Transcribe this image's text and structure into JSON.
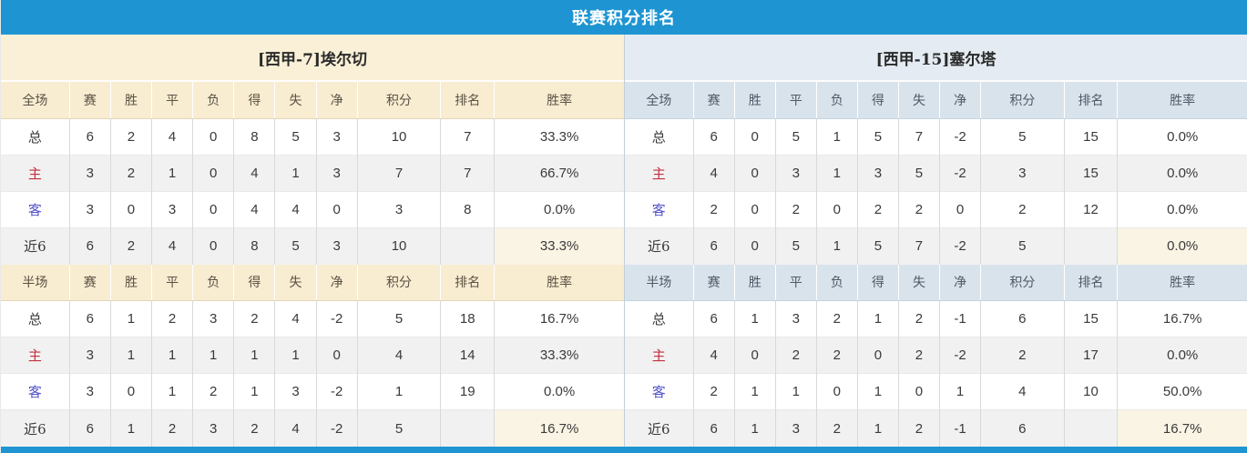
{
  "title": "联赛积分排名",
  "colors": {
    "accent_blue": "#1e95d2",
    "points_red": "#e8442c",
    "rank_blue": "#4e86b8",
    "home_label_red": "#c4303e",
    "away_label_blue": "#5353c8",
    "left_theme_cream": "#f8ecd1",
    "right_theme_blue": "#d9e3ec"
  },
  "stat_columns": [
    "赛",
    "胜",
    "平",
    "负",
    "得",
    "失",
    "净",
    "积分",
    "排名",
    "胜率"
  ],
  "teams": [
    {
      "name": "[西甲-7]埃尔切",
      "theme": "cream",
      "sections": [
        {
          "scope_label": "全场",
          "rows": [
            {
              "label": "总",
              "type": "total",
              "stats": [
                "6",
                "2",
                "4",
                "0",
                "8",
                "5",
                "3"
              ],
              "points": "10",
              "rank": "7",
              "win_rate": "33.3%"
            },
            {
              "label": "主",
              "type": "home",
              "stats": [
                "3",
                "2",
                "1",
                "0",
                "4",
                "1",
                "3"
              ],
              "points": "7",
              "rank": "7",
              "win_rate": "66.7%"
            },
            {
              "label": "客",
              "type": "away",
              "stats": [
                "3",
                "0",
                "3",
                "0",
                "4",
                "4",
                "0"
              ],
              "points": "3",
              "rank": "8",
              "win_rate": "0.0%"
            },
            {
              "label": "近6",
              "type": "recent",
              "stats": [
                "6",
                "2",
                "4",
                "0",
                "8",
                "5",
                "3"
              ],
              "points": "10",
              "rank": "",
              "win_rate": "33.3%"
            }
          ]
        },
        {
          "scope_label": "半场",
          "rows": [
            {
              "label": "总",
              "type": "total",
              "stats": [
                "6",
                "1",
                "2",
                "3",
                "2",
                "4",
                "-2"
              ],
              "points": "5",
              "rank": "18",
              "win_rate": "16.7%"
            },
            {
              "label": "主",
              "type": "home",
              "stats": [
                "3",
                "1",
                "1",
                "1",
                "1",
                "1",
                "0"
              ],
              "points": "4",
              "rank": "14",
              "win_rate": "33.3%"
            },
            {
              "label": "客",
              "type": "away",
              "stats": [
                "3",
                "0",
                "1",
                "2",
                "1",
                "3",
                "-2"
              ],
              "points": "1",
              "rank": "19",
              "win_rate": "0.0%"
            },
            {
              "label": "近6",
              "type": "recent",
              "stats": [
                "6",
                "1",
                "2",
                "3",
                "2",
                "4",
                "-2"
              ],
              "points": "5",
              "rank": "",
              "win_rate": "16.7%"
            }
          ]
        }
      ]
    },
    {
      "name": "[西甲-15]塞尔塔",
      "theme": "blue",
      "sections": [
        {
          "scope_label": "全场",
          "rows": [
            {
              "label": "总",
              "type": "total",
              "stats": [
                "6",
                "0",
                "5",
                "1",
                "5",
                "7",
                "-2"
              ],
              "points": "5",
              "rank": "15",
              "win_rate": "0.0%"
            },
            {
              "label": "主",
              "type": "home",
              "stats": [
                "4",
                "0",
                "3",
                "1",
                "3",
                "5",
                "-2"
              ],
              "points": "3",
              "rank": "15",
              "win_rate": "0.0%"
            },
            {
              "label": "客",
              "type": "away",
              "stats": [
                "2",
                "0",
                "2",
                "0",
                "2",
                "2",
                "0"
              ],
              "points": "2",
              "rank": "12",
              "win_rate": "0.0%"
            },
            {
              "label": "近6",
              "type": "recent",
              "stats": [
                "6",
                "0",
                "5",
                "1",
                "5",
                "7",
                "-2"
              ],
              "points": "5",
              "rank": "",
              "win_rate": "0.0%"
            }
          ]
        },
        {
          "scope_label": "半场",
          "rows": [
            {
              "label": "总",
              "type": "total",
              "stats": [
                "6",
                "1",
                "3",
                "2",
                "1",
                "2",
                "-1"
              ],
              "points": "6",
              "rank": "15",
              "win_rate": "16.7%"
            },
            {
              "label": "主",
              "type": "home",
              "stats": [
                "4",
                "0",
                "2",
                "2",
                "0",
                "2",
                "-2"
              ],
              "points": "2",
              "rank": "17",
              "win_rate": "0.0%"
            },
            {
              "label": "客",
              "type": "away",
              "stats": [
                "2",
                "1",
                "1",
                "0",
                "1",
                "0",
                "1"
              ],
              "points": "4",
              "rank": "10",
              "win_rate": "50.0%"
            },
            {
              "label": "近6",
              "type": "recent",
              "stats": [
                "6",
                "1",
                "3",
                "2",
                "1",
                "2",
                "-1"
              ],
              "points": "6",
              "rank": "",
              "win_rate": "16.7%"
            }
          ]
        }
      ]
    }
  ]
}
